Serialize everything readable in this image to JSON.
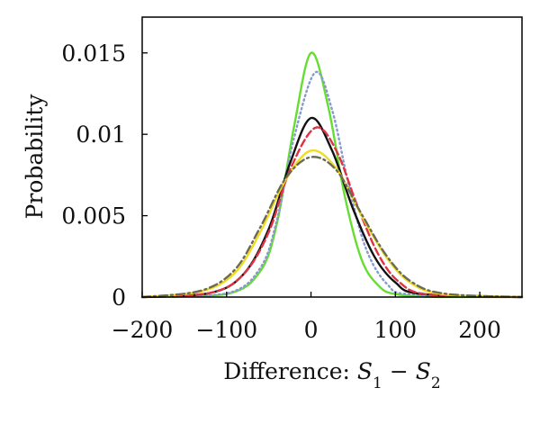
{
  "chart_data": {
    "type": "line",
    "xlabel_prefix": "Difference: ",
    "xlabel_var1": "S",
    "xlabel_sub1": "1",
    "xlabel_minus": " − ",
    "xlabel_var2": "S",
    "xlabel_sub2": "2",
    "ylabel": "Probability",
    "xlim": [
      -200,
      250
    ],
    "ylim": [
      0,
      0.0172
    ],
    "xticks": [
      -200,
      -100,
      0,
      100,
      200
    ],
    "xtick_labels": [
      "−200",
      "−100",
      "0",
      "100",
      "200"
    ],
    "yticks": [
      0,
      0.005,
      0.01,
      0.015
    ],
    "ytick_labels": [
      "0",
      "0.005",
      "0.01",
      "0.015"
    ],
    "grid": false,
    "series": [
      {
        "color": "#66dd33",
        "dash": "solid",
        "points": [
          [
            -200,
            0
          ],
          [
            -100,
            0.00018
          ],
          [
            -60,
            0.0016
          ],
          [
            -40,
            0.0046
          ],
          [
            -20,
            0.0105
          ],
          [
            0,
            0.015
          ],
          [
            20,
            0.0118
          ],
          [
            40,
            0.0062
          ],
          [
            60,
            0.0023
          ],
          [
            80,
            0.0007
          ],
          [
            100,
            0.00018
          ],
          [
            150,
            5e-06
          ],
          [
            250,
            0
          ]
        ]
      },
      {
        "color": "#8899cc",
        "dash": "dotted",
        "points": [
          [
            -200,
            0
          ],
          [
            -100,
            0.00022
          ],
          [
            -60,
            0.0018
          ],
          [
            -40,
            0.0048
          ],
          [
            -20,
            0.0098
          ],
          [
            5,
            0.0138
          ],
          [
            25,
            0.0115
          ],
          [
            45,
            0.0068
          ],
          [
            65,
            0.003
          ],
          [
            90,
            0.0008
          ],
          [
            120,
            0.00015
          ],
          [
            250,
            0
          ]
        ]
      },
      {
        "color": "#111111",
        "dash": "solid",
        "points": [
          [
            -200,
            0
          ],
          [
            -120,
            0.00025
          ],
          [
            -80,
            0.0014
          ],
          [
            -50,
            0.0042
          ],
          [
            -25,
            0.0082
          ],
          [
            0,
            0.011
          ],
          [
            25,
            0.009
          ],
          [
            50,
            0.0054
          ],
          [
            75,
            0.0025
          ],
          [
            100,
            0.0009
          ],
          [
            130,
            0.0002
          ],
          [
            250,
            0
          ]
        ]
      },
      {
        "color": "#dd3344",
        "dash": "dashed",
        "points": [
          [
            -200,
            0
          ],
          [
            -120,
            0.00025
          ],
          [
            -80,
            0.0014
          ],
          [
            -50,
            0.004
          ],
          [
            -25,
            0.0078
          ],
          [
            5,
            0.0104
          ],
          [
            30,
            0.009
          ],
          [
            55,
            0.0056
          ],
          [
            80,
            0.0026
          ],
          [
            105,
            0.0009
          ],
          [
            140,
            0.00015
          ],
          [
            250,
            0
          ]
        ]
      },
      {
        "color": "#eedd22",
        "dash": "solid",
        "points": [
          [
            -200,
            0
          ],
          [
            -130,
            0.00035
          ],
          [
            -90,
            0.0015
          ],
          [
            -60,
            0.004
          ],
          [
            -30,
            0.0072
          ],
          [
            0,
            0.009
          ],
          [
            30,
            0.0079
          ],
          [
            60,
            0.005
          ],
          [
            90,
            0.0024
          ],
          [
            120,
            0.0008
          ],
          [
            160,
            0.00015
          ],
          [
            250,
            0
          ]
        ]
      },
      {
        "color": "#6b6b55",
        "dash": "dashdot",
        "points": [
          [
            -200,
            0
          ],
          [
            -130,
            0.0004
          ],
          [
            -90,
            0.0017
          ],
          [
            -60,
            0.0043
          ],
          [
            -30,
            0.0073
          ],
          [
            0,
            0.0086
          ],
          [
            30,
            0.0078
          ],
          [
            60,
            0.0051
          ],
          [
            90,
            0.0025
          ],
          [
            120,
            0.0009
          ],
          [
            160,
            0.0002
          ],
          [
            250,
            0
          ]
        ]
      }
    ]
  }
}
